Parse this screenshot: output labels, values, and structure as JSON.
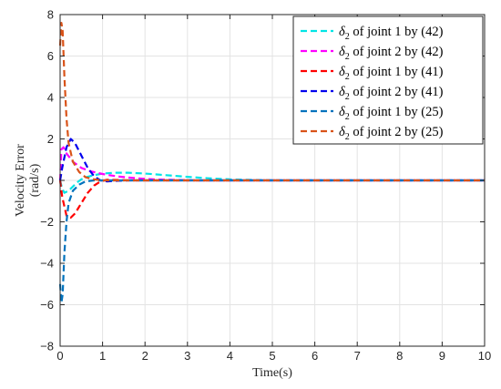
{
  "chart_data": {
    "type": "line",
    "xlabel": "Time(s)",
    "ylabel_line1": "Velocity Error",
    "ylabel_line2": "(rad/s)",
    "xlim": [
      0,
      10
    ],
    "ylim": [
      -8,
      8
    ],
    "x_ticks": [
      0,
      1,
      2,
      3,
      4,
      5,
      6,
      7,
      8,
      9,
      10
    ],
    "y_ticks": [
      -8,
      -6,
      -4,
      -2,
      0,
      2,
      4,
      6,
      8
    ],
    "grid": true,
    "legend_position": "top-right",
    "series": [
      {
        "symbol": "δ",
        "sub": "2",
        "rest": " of joint 1 by (42)",
        "color": "#00e5e5",
        "points": [
          [
            0,
            0
          ],
          [
            0.05,
            -0.4
          ],
          [
            0.1,
            -0.6
          ],
          [
            0.2,
            -0.5
          ],
          [
            0.3,
            -0.3
          ],
          [
            0.4,
            -0.1
          ],
          [
            0.5,
            0.05
          ],
          [
            0.6,
            0.15
          ],
          [
            0.8,
            0.25
          ],
          [
            1.0,
            0.33
          ],
          [
            1.3,
            0.37
          ],
          [
            1.6,
            0.37
          ],
          [
            2.0,
            0.33
          ],
          [
            2.5,
            0.25
          ],
          [
            3.0,
            0.17
          ],
          [
            3.5,
            0.1
          ],
          [
            4.0,
            0.05
          ],
          [
            4.5,
            0.02
          ],
          [
            5.0,
            0
          ],
          [
            10,
            0
          ]
        ]
      },
      {
        "symbol": "δ",
        "sub": "2",
        "rest": " of joint 2 by (42)",
        "color": "#ff00ff",
        "points": [
          [
            0,
            0
          ],
          [
            0.03,
            1.5
          ],
          [
            0.08,
            1.6
          ],
          [
            0.15,
            1.3
          ],
          [
            0.3,
            0.9
          ],
          [
            0.5,
            0.6
          ],
          [
            0.7,
            0.45
          ],
          [
            0.9,
            0.35
          ],
          [
            1.1,
            0.27
          ],
          [
            1.4,
            0.18
          ],
          [
            1.8,
            0.1
          ],
          [
            2.2,
            0.05
          ],
          [
            2.7,
            0.02
          ],
          [
            3.2,
            0
          ],
          [
            10,
            0
          ]
        ]
      },
      {
        "symbol": "δ",
        "sub": "2",
        "rest": " of joint 1 by (41)",
        "color": "#ff0000",
        "points": [
          [
            0,
            0
          ],
          [
            0.05,
            -0.8
          ],
          [
            0.15,
            -1.7
          ],
          [
            0.25,
            -1.8
          ],
          [
            0.35,
            -1.6
          ],
          [
            0.5,
            -1.1
          ],
          [
            0.65,
            -0.6
          ],
          [
            0.8,
            -0.25
          ],
          [
            0.95,
            -0.05
          ],
          [
            1.1,
            0.03
          ],
          [
            1.3,
            0.02
          ],
          [
            1.6,
            0
          ],
          [
            10,
            0
          ]
        ]
      },
      {
        "symbol": "δ",
        "sub": "2",
        "rest": " of joint 2 by (41)",
        "color": "#0000ee",
        "points": [
          [
            0,
            0
          ],
          [
            0.05,
            0.6
          ],
          [
            0.15,
            1.6
          ],
          [
            0.25,
            2.0
          ],
          [
            0.35,
            1.8
          ],
          [
            0.5,
            1.2
          ],
          [
            0.65,
            0.6
          ],
          [
            0.8,
            0.2
          ],
          [
            0.95,
            0
          ],
          [
            1.1,
            -0.05
          ],
          [
            1.3,
            -0.02
          ],
          [
            1.6,
            0
          ],
          [
            10,
            0
          ]
        ]
      },
      {
        "symbol": "δ",
        "sub": "2",
        "rest": " of joint 1 by (25)",
        "color": "#0072bd",
        "points": [
          [
            0,
            -5
          ],
          [
            0.03,
            -5.9
          ],
          [
            0.06,
            -5.5
          ],
          [
            0.1,
            -3.5
          ],
          [
            0.15,
            -2.0
          ],
          [
            0.2,
            -1.1
          ],
          [
            0.3,
            -0.5
          ],
          [
            0.45,
            -0.2
          ],
          [
            0.6,
            -0.05
          ],
          [
            0.8,
            0
          ],
          [
            10,
            0
          ]
        ]
      },
      {
        "symbol": "δ",
        "sub": "2",
        "rest": " of joint 2 by (25)",
        "color": "#d95319",
        "points": [
          [
            0,
            6.5
          ],
          [
            0.03,
            7.6
          ],
          [
            0.06,
            7.2
          ],
          [
            0.1,
            5.0
          ],
          [
            0.15,
            3.0
          ],
          [
            0.2,
            1.8
          ],
          [
            0.3,
            0.9
          ],
          [
            0.45,
            0.4
          ],
          [
            0.6,
            0.15
          ],
          [
            0.8,
            0.05
          ],
          [
            1.0,
            0
          ],
          [
            10,
            0
          ]
        ]
      }
    ]
  }
}
